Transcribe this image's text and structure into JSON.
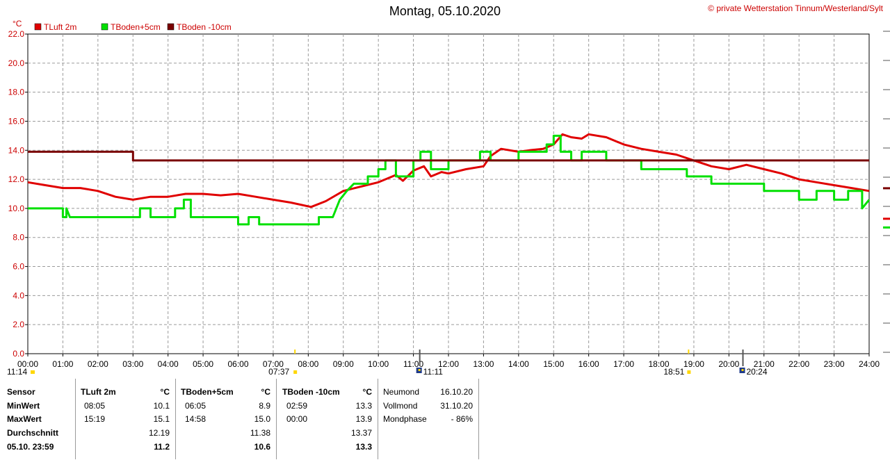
{
  "title": "Montag, 05.10.2020",
  "copyright": "© private Wetterstation Tinnum/Westerland/Sylt",
  "colors": {
    "tluft": "#e00000",
    "tboden5": "#00e000",
    "tboden10": "#7a0000",
    "grid": "#9a9a9a",
    "axis_text": "#cc0000",
    "sun": "#ffd700",
    "moon": "#1e3a8a"
  },
  "chart_data": {
    "type": "line",
    "ylabel": "°C",
    "ylim": [
      0,
      22
    ],
    "yticks": [
      "0.0",
      "2.0",
      "4.0",
      "6.0",
      "8.0",
      "10.0",
      "12.0",
      "14.0",
      "16.0",
      "18.0",
      "20.0",
      "22.0"
    ],
    "xlim": [
      0,
      24
    ],
    "xticks": [
      "00:00",
      "01:00",
      "02:00",
      "03:00",
      "04:00",
      "05:00",
      "06:00",
      "07:00",
      "08:00",
      "09:00",
      "10:00",
      "11:00",
      "12:00",
      "13:00",
      "14:00",
      "15:00",
      "16:00",
      "17:00",
      "18:00",
      "19:00",
      "20:00",
      "21:00",
      "22:00",
      "23:00",
      "24:00"
    ],
    "series": [
      {
        "name": "TLuft 2m",
        "color": "#e00000",
        "points": [
          [
            0,
            11.8
          ],
          [
            0.5,
            11.6
          ],
          [
            1,
            11.4
          ],
          [
            1.5,
            11.4
          ],
          [
            2,
            11.2
          ],
          [
            2.5,
            10.8
          ],
          [
            3,
            10.6
          ],
          [
            3.5,
            10.8
          ],
          [
            4,
            10.8
          ],
          [
            4.5,
            11.0
          ],
          [
            5,
            11.0
          ],
          [
            5.5,
            10.9
          ],
          [
            6,
            11.0
          ],
          [
            6.5,
            10.8
          ],
          [
            7,
            10.6
          ],
          [
            7.5,
            10.4
          ],
          [
            8.08,
            10.1
          ],
          [
            8.5,
            10.5
          ],
          [
            9,
            11.2
          ],
          [
            9.5,
            11.5
          ],
          [
            10,
            11.8
          ],
          [
            10.5,
            12.3
          ],
          [
            10.7,
            11.9
          ],
          [
            11,
            12.6
          ],
          [
            11.3,
            12.9
          ],
          [
            11.5,
            12.2
          ],
          [
            11.8,
            12.5
          ],
          [
            12,
            12.4
          ],
          [
            12.5,
            12.7
          ],
          [
            13,
            12.9
          ],
          [
            13.2,
            13.6
          ],
          [
            13.5,
            14.1
          ],
          [
            14,
            13.9
          ],
          [
            14.3,
            14.0
          ],
          [
            14.7,
            14.1
          ],
          [
            15.0,
            14.4
          ],
          [
            15.25,
            15.1
          ],
          [
            15.5,
            14.9
          ],
          [
            15.8,
            14.8
          ],
          [
            16,
            15.1
          ],
          [
            16.5,
            14.9
          ],
          [
            17,
            14.4
          ],
          [
            17.5,
            14.1
          ],
          [
            18,
            13.9
          ],
          [
            18.5,
            13.7
          ],
          [
            19,
            13.3
          ],
          [
            19.5,
            12.9
          ],
          [
            20,
            12.7
          ],
          [
            20.5,
            13.0
          ],
          [
            21,
            12.7
          ],
          [
            21.5,
            12.4
          ],
          [
            22,
            12.0
          ],
          [
            22.5,
            11.8
          ],
          [
            23,
            11.6
          ],
          [
            23.5,
            11.4
          ],
          [
            24,
            11.2
          ]
        ]
      },
      {
        "name": "TBoden+5cm",
        "color": "#00e000",
        "points": [
          [
            0,
            10.0
          ],
          [
            1.0,
            10.0
          ],
          [
            1.0,
            9.4
          ],
          [
            1.1,
            9.4
          ],
          [
            1.1,
            10.0
          ],
          [
            1.2,
            9.4
          ],
          [
            3.2,
            9.4
          ],
          [
            3.2,
            10.0
          ],
          [
            3.5,
            10.0
          ],
          [
            3.5,
            9.4
          ],
          [
            4.2,
            9.4
          ],
          [
            4.2,
            10.0
          ],
          [
            4.45,
            10.0
          ],
          [
            4.45,
            10.6
          ],
          [
            4.65,
            10.6
          ],
          [
            4.65,
            9.4
          ],
          [
            6.0,
            9.4
          ],
          [
            6.0,
            8.9
          ],
          [
            6.3,
            8.9
          ],
          [
            6.3,
            9.4
          ],
          [
            6.6,
            9.4
          ],
          [
            6.6,
            8.9
          ],
          [
            8.3,
            8.9
          ],
          [
            8.3,
            9.4
          ],
          [
            8.7,
            9.4
          ],
          [
            8.9,
            10.6
          ],
          [
            9.1,
            11.2
          ],
          [
            9.3,
            11.7
          ],
          [
            9.7,
            11.7
          ],
          [
            9.7,
            12.2
          ],
          [
            10.0,
            12.2
          ],
          [
            10.0,
            12.7
          ],
          [
            10.2,
            12.7
          ],
          [
            10.2,
            13.3
          ],
          [
            10.5,
            13.3
          ],
          [
            10.5,
            12.2
          ],
          [
            11.0,
            12.2
          ],
          [
            11.0,
            13.3
          ],
          [
            11.2,
            13.3
          ],
          [
            11.2,
            13.9
          ],
          [
            11.5,
            13.9
          ],
          [
            11.5,
            12.7
          ],
          [
            12.0,
            12.7
          ],
          [
            12.0,
            13.3
          ],
          [
            12.5,
            13.3
          ],
          [
            12.9,
            13.3
          ],
          [
            12.9,
            13.9
          ],
          [
            13.2,
            13.9
          ],
          [
            13.2,
            13.3
          ],
          [
            14.0,
            13.3
          ],
          [
            14.0,
            13.9
          ],
          [
            14.8,
            13.9
          ],
          [
            14.8,
            14.4
          ],
          [
            15.0,
            14.4
          ],
          [
            15.0,
            15.0
          ],
          [
            15.2,
            15.0
          ],
          [
            15.2,
            13.9
          ],
          [
            15.5,
            13.9
          ],
          [
            15.5,
            13.3
          ],
          [
            15.8,
            13.3
          ],
          [
            15.8,
            13.9
          ],
          [
            16.5,
            13.9
          ],
          [
            16.5,
            13.3
          ],
          [
            17.5,
            13.3
          ],
          [
            17.5,
            12.7
          ],
          [
            18.8,
            12.7
          ],
          [
            18.8,
            12.2
          ],
          [
            19.5,
            12.2
          ],
          [
            19.5,
            11.7
          ],
          [
            21.0,
            11.7
          ],
          [
            21.0,
            11.2
          ],
          [
            22.0,
            11.2
          ],
          [
            22.0,
            10.6
          ],
          [
            22.5,
            10.6
          ],
          [
            22.5,
            11.2
          ],
          [
            23.0,
            11.2
          ],
          [
            23.0,
            10.6
          ],
          [
            23.4,
            10.6
          ],
          [
            23.4,
            11.2
          ],
          [
            23.8,
            11.2
          ],
          [
            23.8,
            10.0
          ],
          [
            24,
            10.6
          ]
        ]
      },
      {
        "name": "TBoden -10cm",
        "color": "#7a0000",
        "points": [
          [
            0,
            13.9
          ],
          [
            3.0,
            13.9
          ],
          [
            3.0,
            13.3
          ],
          [
            24,
            13.3
          ]
        ]
      }
    ],
    "markers": {
      "sunrise": {
        "label": "07:37",
        "x": 7.62
      },
      "sunset": {
        "label": "18:51",
        "x": 18.85
      },
      "moonrise": {
        "label": "20:24",
        "x": 20.4
      },
      "moonset": {
        "label": "11:11",
        "x": 11.18
      },
      "prev_moonset": {
        "label": "11:14",
        "x": 0.0
      }
    }
  },
  "table": {
    "labels": {
      "sensor": "Sensor",
      "min": "MinWert",
      "max": "MaxWert",
      "avg": "Durchschnitt",
      "date": "05.10. 23:59"
    },
    "columns": [
      {
        "name": "TLuft 2m",
        "unit": "°C",
        "min_time": "08:05",
        "min_val": "10.1",
        "max_time": "15:19",
        "max_val": "15.1",
        "avg": "12.19",
        "current": "11.2"
      },
      {
        "name": "TBoden+5cm",
        "unit": "°C",
        "min_time": "06:05",
        "min_val": "8.9",
        "max_time": "14:58",
        "max_val": "15.0",
        "avg": "11.38",
        "current": "10.6"
      },
      {
        "name": "TBoden -10cm",
        "unit": "°C",
        "min_time": "02:59",
        "min_val": "13.3",
        "max_time": "00:00",
        "max_val": "13.9",
        "avg": "13.37",
        "current": "13.3"
      }
    ],
    "moon": {
      "new_label": "Neumond",
      "new_date": "16.10.20",
      "full_label": "Vollmond",
      "full_date": "31.10.20",
      "phase_label": "Mondphase",
      "phase_val": "- 86%"
    }
  }
}
